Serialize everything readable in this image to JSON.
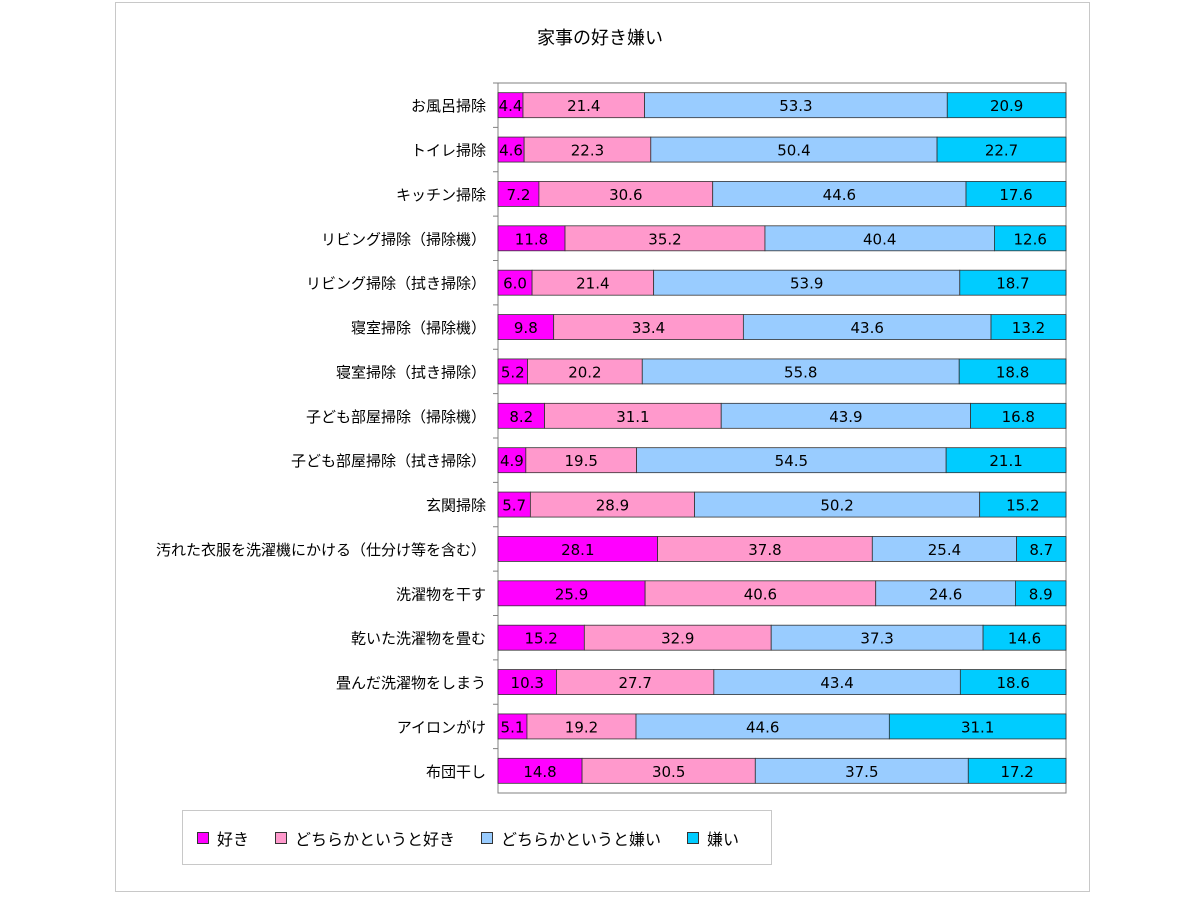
{
  "chart_data": {
    "type": "bar",
    "orientation": "horizontal",
    "stacked": true,
    "title": "家事の好き嫌い",
    "xlim": [
      0,
      100
    ],
    "grid": false,
    "legend_position": "bottom",
    "categories": [
      "お風呂掃除",
      "トイレ掃除",
      "キッチン掃除",
      "リビング掃除（掃除機）",
      "リビング掃除（拭き掃除）",
      "寝室掃除（掃除機）",
      "寝室掃除（拭き掃除）",
      "子ども部屋掃除（掃除機）",
      "子ども部屋掃除（拭き掃除）",
      "玄関掃除",
      "汚れた衣服を洗濯機にかける（仕分け等を含む）",
      "洗濯物を干す",
      "乾いた洗濯物を畳む",
      "畳んだ洗濯物をしまう",
      "アイロンがけ",
      "布団干し"
    ],
    "series": [
      {
        "name": "好き",
        "color": "#ff00ff",
        "values": [
          4.4,
          4.6,
          7.2,
          11.8,
          6.0,
          9.8,
          5.2,
          8.2,
          4.9,
          5.7,
          28.1,
          25.9,
          15.2,
          10.3,
          5.1,
          14.8
        ]
      },
      {
        "name": "どちらかというと好き",
        "color": "#ff99cc",
        "values": [
          21.4,
          22.3,
          30.6,
          35.2,
          21.4,
          33.4,
          20.2,
          31.1,
          19.5,
          28.9,
          37.8,
          40.6,
          32.9,
          27.7,
          19.2,
          30.5
        ]
      },
      {
        "name": "どちらかというと嫌い",
        "color": "#99ccff",
        "values": [
          53.3,
          50.4,
          44.6,
          40.4,
          53.9,
          43.6,
          55.8,
          43.9,
          54.5,
          50.2,
          25.4,
          24.6,
          37.3,
          43.4,
          44.6,
          37.5
        ]
      },
      {
        "name": "嫌い",
        "color": "#00ccff",
        "values": [
          20.9,
          22.7,
          17.6,
          12.6,
          18.7,
          13.2,
          18.8,
          16.8,
          21.1,
          15.2,
          8.7,
          8.9,
          14.6,
          18.6,
          31.1,
          17.2
        ]
      }
    ]
  }
}
